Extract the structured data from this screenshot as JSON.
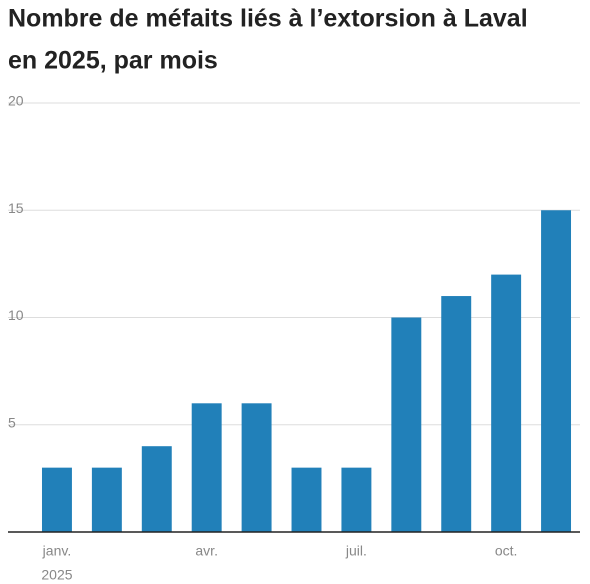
{
  "chart_data": {
    "type": "bar",
    "title_lines": [
      "Nombre de méfaits liés à l’extorsion à Laval",
      "en 2025, par mois"
    ],
    "categories": [
      "janv.",
      null,
      null,
      "avr.",
      null,
      null,
      "juil.",
      null,
      null,
      "oct.",
      null
    ],
    "x_sublabel": "2025",
    "values": [
      3,
      3,
      4,
      6,
      6,
      3,
      3,
      10,
      11,
      12,
      15
    ],
    "color": "#2180b9",
    "ylim": [
      0,
      20
    ],
    "yticks": [
      5,
      10,
      15,
      20
    ],
    "grid": true
  }
}
